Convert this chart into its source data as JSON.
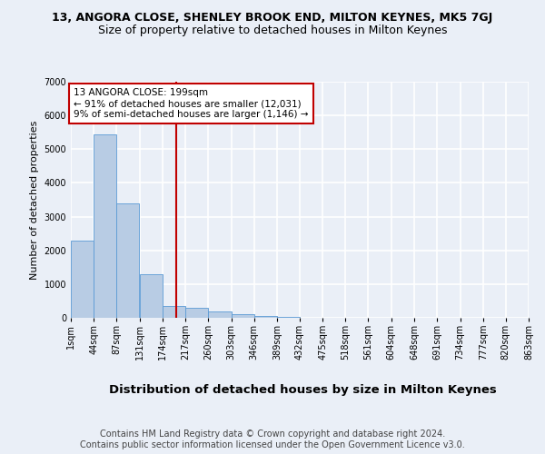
{
  "title": "13, ANGORA CLOSE, SHENLEY BROOK END, MILTON KEYNES, MK5 7GJ",
  "subtitle": "Size of property relative to detached houses in Milton Keynes",
  "xlabel": "Distribution of detached houses by size in Milton Keynes",
  "ylabel": "Number of detached properties",
  "bin_edges": [
    1,
    44,
    87,
    131,
    174,
    217,
    260,
    303,
    346,
    389,
    432,
    475,
    518,
    561,
    604,
    648,
    691,
    734,
    777,
    820,
    863
  ],
  "bar_values": [
    2300,
    5450,
    3400,
    1300,
    350,
    300,
    200,
    100,
    50,
    30,
    10,
    5,
    3,
    2,
    1,
    1,
    0,
    0,
    0,
    0
  ],
  "bar_color": "#b8cce4",
  "bar_edgecolor": "#5b9bd5",
  "property_size": 199,
  "vline_color": "#c00000",
  "annotation_text": "13 ANGORA CLOSE: 199sqm\n← 91% of detached houses are smaller (12,031)\n9% of semi-detached houses are larger (1,146) →",
  "annotation_box_color": "#ffffff",
  "annotation_box_edgecolor": "#c00000",
  "ylim": [
    0,
    7000
  ],
  "yticks": [
    0,
    1000,
    2000,
    3000,
    4000,
    5000,
    6000,
    7000
  ],
  "tick_labels": [
    "1sqm",
    "44sqm",
    "87sqm",
    "131sqm",
    "174sqm",
    "217sqm",
    "260sqm",
    "303sqm",
    "346sqm",
    "389sqm",
    "432sqm",
    "475sqm",
    "518sqm",
    "561sqm",
    "604sqm",
    "648sqm",
    "691sqm",
    "734sqm",
    "777sqm",
    "820sqm",
    "863sqm"
  ],
  "background_color": "#eaeff7",
  "grid_color": "#ffffff",
  "footer": "Contains HM Land Registry data © Crown copyright and database right 2024.\nContains public sector information licensed under the Open Government Licence v3.0.",
  "title_fontsize": 9,
  "subtitle_fontsize": 9,
  "xlabel_fontsize": 9.5,
  "ylabel_fontsize": 8,
  "tick_fontsize": 7,
  "footer_fontsize": 7
}
